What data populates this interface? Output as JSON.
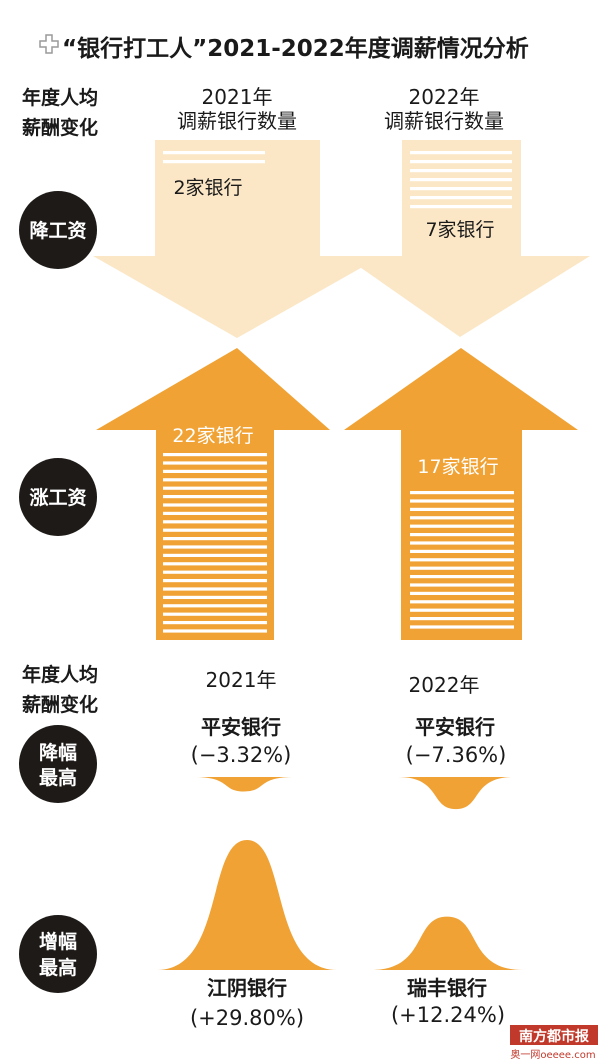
{
  "title": "“银行打工人”2021-2022年度调薪情况分析",
  "row_header_1": {
    "line1": "年度人均",
    "line2": "薪酬变化"
  },
  "col_2021": {
    "line1": "2021年",
    "line2": "调薪银行数量"
  },
  "col_2022": {
    "line1": "2022年",
    "line2": "调薪银行数量"
  },
  "row_header_2": {
    "line1": "年度人均",
    "line2": "薪酬变化"
  },
  "year_2021": "2021年",
  "year_2022": "2022年",
  "badges": {
    "cut": "降工资",
    "raise": "涨工资",
    "max_cut": [
      "降幅",
      "最高"
    ],
    "max_raise": [
      "增幅",
      "最高"
    ]
  },
  "colors": {
    "light": "#fbe7c6",
    "orange": "#f0a234",
    "dark": "#1e1a18",
    "text": "#1a1a1a"
  },
  "watermark": {
    "name": "南方都市报",
    "site": "奥一网oeeee.com"
  },
  "chart_data": [
    {
      "type": "bar",
      "categories": [
        "2021年",
        "2022年"
      ],
      "series": [
        {
          "name": "降工资",
          "values": [
            2,
            7
          ],
          "labels": [
            "2家银行",
            "7家银行"
          ]
        },
        {
          "name": "涨工资",
          "values": [
            22,
            17
          ],
          "labels": [
            "22家银行",
            "17家银行"
          ]
        }
      ],
      "unit": "家银行"
    },
    {
      "type": "bar",
      "categories": [
        "2021年",
        "2022年"
      ],
      "series": [
        {
          "name": "降幅最高",
          "banks": [
            "平安银行",
            "平安银行"
          ],
          "values": [
            -3.32,
            -7.36
          ],
          "labels": [
            "(−3.32%)",
            "(−7.36%)"
          ]
        },
        {
          "name": "增幅最高",
          "banks": [
            "江阴银行",
            "瑞丰银行"
          ],
          "values": [
            29.8,
            12.24
          ],
          "labels": [
            "(+29.80%)",
            "(+12.24%)"
          ]
        }
      ],
      "unit": "%"
    }
  ]
}
